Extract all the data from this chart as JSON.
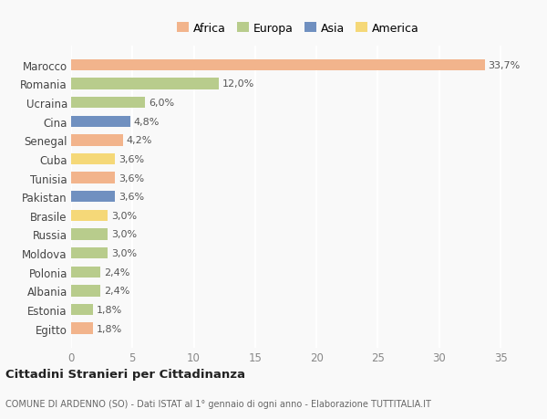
{
  "countries": [
    "Egitto",
    "Estonia",
    "Albania",
    "Polonia",
    "Moldova",
    "Russia",
    "Brasile",
    "Pakistan",
    "Tunisia",
    "Cuba",
    "Senegal",
    "Cina",
    "Ucraina",
    "Romania",
    "Marocco"
  ],
  "values": [
    1.8,
    1.8,
    2.4,
    2.4,
    3.0,
    3.0,
    3.0,
    3.6,
    3.6,
    3.6,
    4.2,
    4.8,
    6.0,
    12.0,
    33.7
  ],
  "labels": [
    "1,8%",
    "1,8%",
    "2,4%",
    "2,4%",
    "3,0%",
    "3,0%",
    "3,0%",
    "3,6%",
    "3,6%",
    "3,6%",
    "4,2%",
    "4,8%",
    "6,0%",
    "12,0%",
    "33,7%"
  ],
  "continents": [
    "Africa",
    "Europa",
    "Europa",
    "Europa",
    "Europa",
    "Europa",
    "America",
    "Asia",
    "Africa",
    "America",
    "Africa",
    "Asia",
    "Europa",
    "Europa",
    "Africa"
  ],
  "colors": {
    "Africa": "#F2B48C",
    "Europa": "#B8CC8C",
    "Asia": "#7090C0",
    "America": "#F5D878"
  },
  "xlim": [
    0,
    37
  ],
  "xticks": [
    0,
    5,
    10,
    15,
    20,
    25,
    30,
    35
  ],
  "title": "Cittadini Stranieri per Cittadinanza",
  "subtitle": "COMUNE DI ARDENNO (SO) - Dati ISTAT al 1° gennaio di ogni anno - Elaborazione TUTTITALIA.IT",
  "background_color": "#f9f9f9",
  "bar_height": 0.6,
  "legend_order": [
    "Africa",
    "Europa",
    "Asia",
    "America"
  ]
}
